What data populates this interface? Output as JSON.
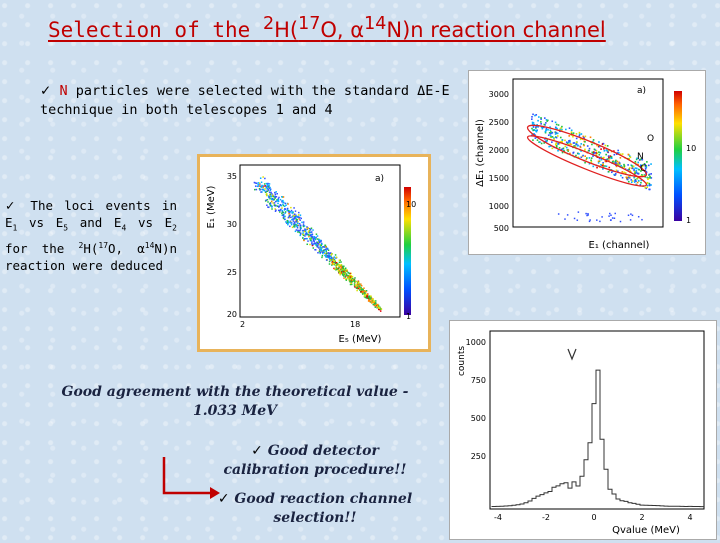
{
  "title": {
    "lead": "Selection of the ",
    "sup1": "2",
    "mid": "H(",
    "sup2": "17",
    "mid2": "O, α",
    "sup3": "14",
    "tail": "N)n reaction channel"
  },
  "bullet1": {
    "check": "✓",
    "highlight": "N",
    "text1": " particles were selected with the standard  ΔE-E",
    "text2": "technique in both telescopes 1 and 4"
  },
  "bullet2": {
    "check": "✓",
    "t1": " The loci events in E",
    "s1": "1",
    "t2": " vs E",
    "s2": "5",
    "t3": " and E",
    "s3": "4",
    "t4": " vs E",
    "s4": "2",
    "t5": " for the ",
    "p1": "2",
    "t6": "H(",
    "p2": "17",
    "t7": "O, α",
    "p3": "14",
    "t8": "N)n reaction were deduced"
  },
  "plot_a": {
    "panel": "a)",
    "ylabel": "ΔE₁ (channel)",
    "xlabel": "E₁ (channel)",
    "yticks": [
      "3000",
      "2500",
      "2000",
      "1500",
      "1000",
      "500"
    ],
    "ztick_hi": "10",
    "ztick_lo": "1",
    "labels": [
      "O",
      "N",
      "C"
    ]
  },
  "plot_b": {
    "panel": "a)",
    "ylabel": "E₁ (MeV)",
    "xlabel": "E₅ (MeV)",
    "yticks": [
      "35",
      "30",
      "25",
      "20"
    ],
    "xticks": [
      "2",
      "18"
    ],
    "ztick_hi": "10",
    "ztick_lo": "1"
  },
  "plot_c": {
    "ylabel": "counts",
    "xlabel": "Qvalue (MeV)",
    "yticks": [
      "1000",
      "750",
      "500",
      "250"
    ],
    "xticks": [
      "-4",
      "-2",
      "0",
      "2",
      "4"
    ]
  },
  "agreement": {
    "line1": "Good agreement with the theoretical value -",
    "line2": "1.033 MeV"
  },
  "conclusion1": {
    "check": "✓",
    "line1": " Good detector",
    "line2": "calibration procedure!!"
  },
  "conclusion2": {
    "check": "✓",
    "line1": " Good reaction channel",
    "line2": "selection!!"
  },
  "colors": {
    "title": "#c00000",
    "arrow": "#c00000",
    "frame": "#e8b35a"
  }
}
